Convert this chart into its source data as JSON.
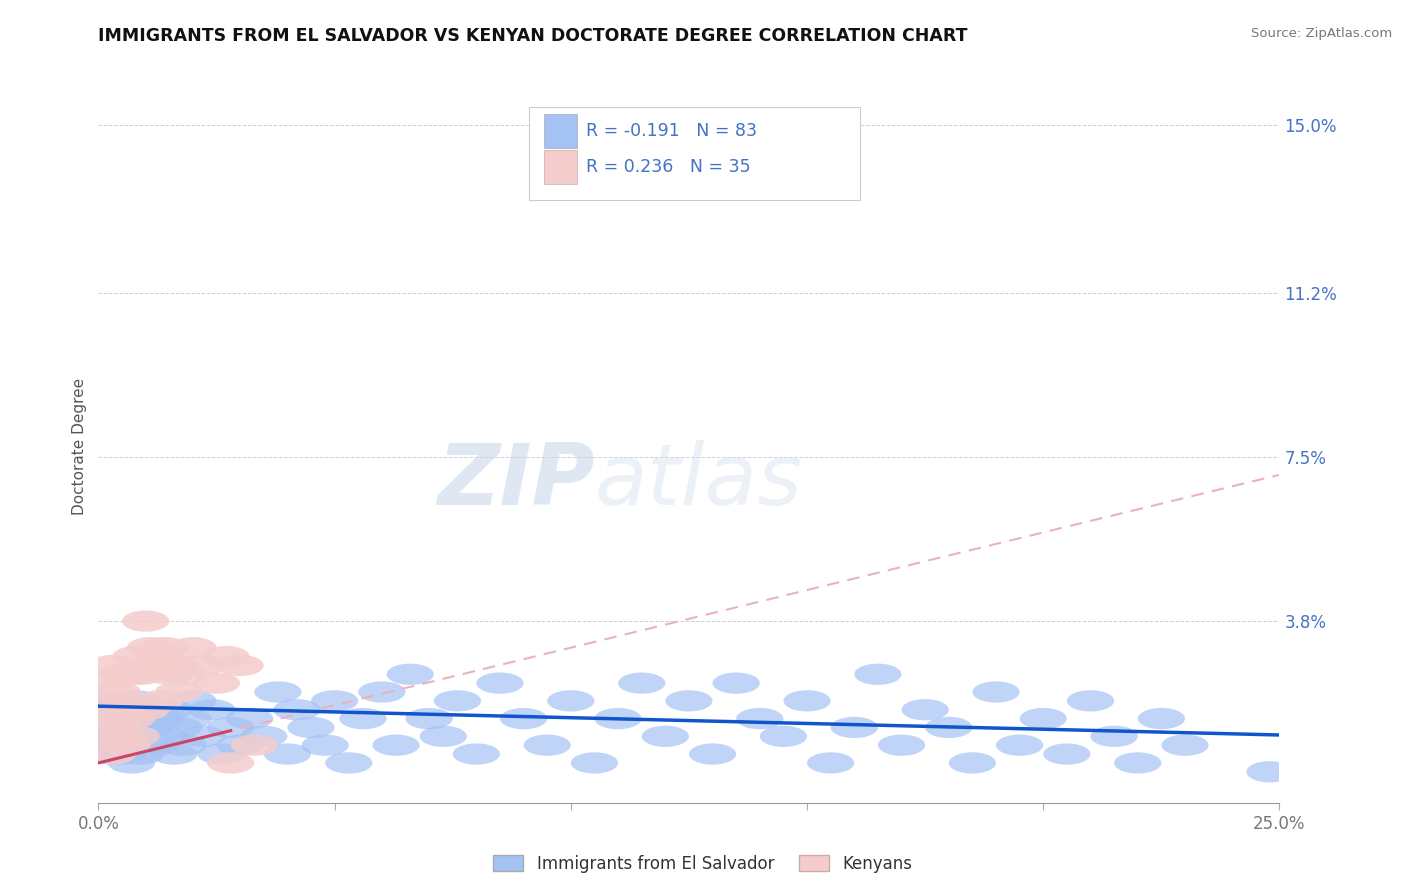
{
  "title": "IMMIGRANTS FROM EL SALVADOR VS KENYAN DOCTORATE DEGREE CORRELATION CHART",
  "source": "Source: ZipAtlas.com",
  "ylabel": "Doctorate Degree",
  "xlim": [
    0.0,
    0.25
  ],
  "ylim": [
    -0.003,
    0.158
  ],
  "ytick_positions": [
    0.0,
    0.038,
    0.075,
    0.112,
    0.15
  ],
  "ytick_labels": [
    "",
    "3.8%",
    "7.5%",
    "11.2%",
    "15.0%"
  ],
  "xtick_positions": [
    0.0,
    0.05,
    0.1,
    0.15,
    0.2,
    0.25
  ],
  "xtick_labels": [
    "0.0%",
    "",
    "",
    "",
    "",
    "25.0%"
  ],
  "blue_color": "#a4c2f4",
  "pink_color": "#f4cccc",
  "blue_line_color": "#1155cc",
  "pink_solid_color": "#cc4466",
  "pink_dash_color": "#e8b4bb",
  "axis_label_color": "#4472c4",
  "grid_color": "#b0b0b0",
  "blue_R": -0.191,
  "blue_N": 83,
  "pink_R": 0.236,
  "pink_N": 35,
  "blue_intercept": 0.0188,
  "blue_slope": -0.026,
  "pink_intercept": 0.006,
  "pink_slope": 0.26,
  "watermark_zip": "ZIP",
  "watermark_atlas": "atlas",
  "legend_blue_label": "Immigrants from El Salvador",
  "legend_pink_label": "Kenyans",
  "blue_points": [
    [
      0.001,
      0.016
    ],
    [
      0.001,
      0.02
    ],
    [
      0.001,
      0.012
    ],
    [
      0.002,
      0.018
    ],
    [
      0.002,
      0.01
    ],
    [
      0.003,
      0.015
    ],
    [
      0.003,
      0.008
    ],
    [
      0.004,
      0.02
    ],
    [
      0.004,
      0.012
    ],
    [
      0.005,
      0.016
    ],
    [
      0.005,
      0.008
    ],
    [
      0.006,
      0.018
    ],
    [
      0.006,
      0.01
    ],
    [
      0.007,
      0.014
    ],
    [
      0.007,
      0.006
    ],
    [
      0.008,
      0.02
    ],
    [
      0.008,
      0.012
    ],
    [
      0.009,
      0.016
    ],
    [
      0.009,
      0.008
    ],
    [
      0.01,
      0.018
    ],
    [
      0.011,
      0.014
    ],
    [
      0.012,
      0.01
    ],
    [
      0.013,
      0.016
    ],
    [
      0.014,
      0.012
    ],
    [
      0.015,
      0.018
    ],
    [
      0.016,
      0.008
    ],
    [
      0.017,
      0.014
    ],
    [
      0.018,
      0.01
    ],
    [
      0.019,
      0.016
    ],
    [
      0.02,
      0.02
    ],
    [
      0.022,
      0.012
    ],
    [
      0.024,
      0.018
    ],
    [
      0.026,
      0.008
    ],
    [
      0.028,
      0.014
    ],
    [
      0.03,
      0.01
    ],
    [
      0.032,
      0.016
    ],
    [
      0.035,
      0.012
    ],
    [
      0.038,
      0.022
    ],
    [
      0.04,
      0.008
    ],
    [
      0.042,
      0.018
    ],
    [
      0.045,
      0.014
    ],
    [
      0.048,
      0.01
    ],
    [
      0.05,
      0.02
    ],
    [
      0.053,
      0.006
    ],
    [
      0.056,
      0.016
    ],
    [
      0.06,
      0.022
    ],
    [
      0.063,
      0.01
    ],
    [
      0.066,
      0.026
    ],
    [
      0.07,
      0.016
    ],
    [
      0.073,
      0.012
    ],
    [
      0.076,
      0.02
    ],
    [
      0.08,
      0.008
    ],
    [
      0.085,
      0.024
    ],
    [
      0.09,
      0.016
    ],
    [
      0.095,
      0.01
    ],
    [
      0.1,
      0.02
    ],
    [
      0.105,
      0.006
    ],
    [
      0.11,
      0.016
    ],
    [
      0.115,
      0.024
    ],
    [
      0.12,
      0.012
    ],
    [
      0.125,
      0.02
    ],
    [
      0.13,
      0.008
    ],
    [
      0.135,
      0.024
    ],
    [
      0.14,
      0.016
    ],
    [
      0.145,
      0.012
    ],
    [
      0.15,
      0.02
    ],
    [
      0.155,
      0.006
    ],
    [
      0.16,
      0.014
    ],
    [
      0.165,
      0.026
    ],
    [
      0.17,
      0.01
    ],
    [
      0.175,
      0.018
    ],
    [
      0.18,
      0.014
    ],
    [
      0.185,
      0.006
    ],
    [
      0.19,
      0.022
    ],
    [
      0.195,
      0.01
    ],
    [
      0.2,
      0.016
    ],
    [
      0.205,
      0.008
    ],
    [
      0.21,
      0.02
    ],
    [
      0.215,
      0.012
    ],
    [
      0.22,
      0.006
    ],
    [
      0.225,
      0.016
    ],
    [
      0.23,
      0.01
    ],
    [
      0.248,
      0.004
    ]
  ],
  "pink_points": [
    [
      0.001,
      0.02
    ],
    [
      0.001,
      0.016
    ],
    [
      0.002,
      0.024
    ],
    [
      0.002,
      0.012
    ],
    [
      0.003,
      0.028
    ],
    [
      0.003,
      0.008
    ],
    [
      0.004,
      0.022
    ],
    [
      0.004,
      0.016
    ],
    [
      0.005,
      0.026
    ],
    [
      0.005,
      0.012
    ],
    [
      0.006,
      0.02
    ],
    [
      0.006,
      0.01
    ],
    [
      0.007,
      0.026
    ],
    [
      0.007,
      0.016
    ],
    [
      0.008,
      0.03
    ],
    [
      0.008,
      0.012
    ],
    [
      0.009,
      0.026
    ],
    [
      0.01,
      0.038
    ],
    [
      0.01,
      0.018
    ],
    [
      0.011,
      0.032
    ],
    [
      0.012,
      0.028
    ],
    [
      0.013,
      0.03
    ],
    [
      0.013,
      0.02
    ],
    [
      0.014,
      0.032
    ],
    [
      0.015,
      0.026
    ],
    [
      0.016,
      0.028
    ],
    [
      0.017,
      0.022
    ],
    [
      0.018,
      0.026
    ],
    [
      0.02,
      0.032
    ],
    [
      0.022,
      0.028
    ],
    [
      0.025,
      0.024
    ],
    [
      0.027,
      0.03
    ],
    [
      0.028,
      0.006
    ],
    [
      0.03,
      0.028
    ],
    [
      0.033,
      0.01
    ]
  ]
}
